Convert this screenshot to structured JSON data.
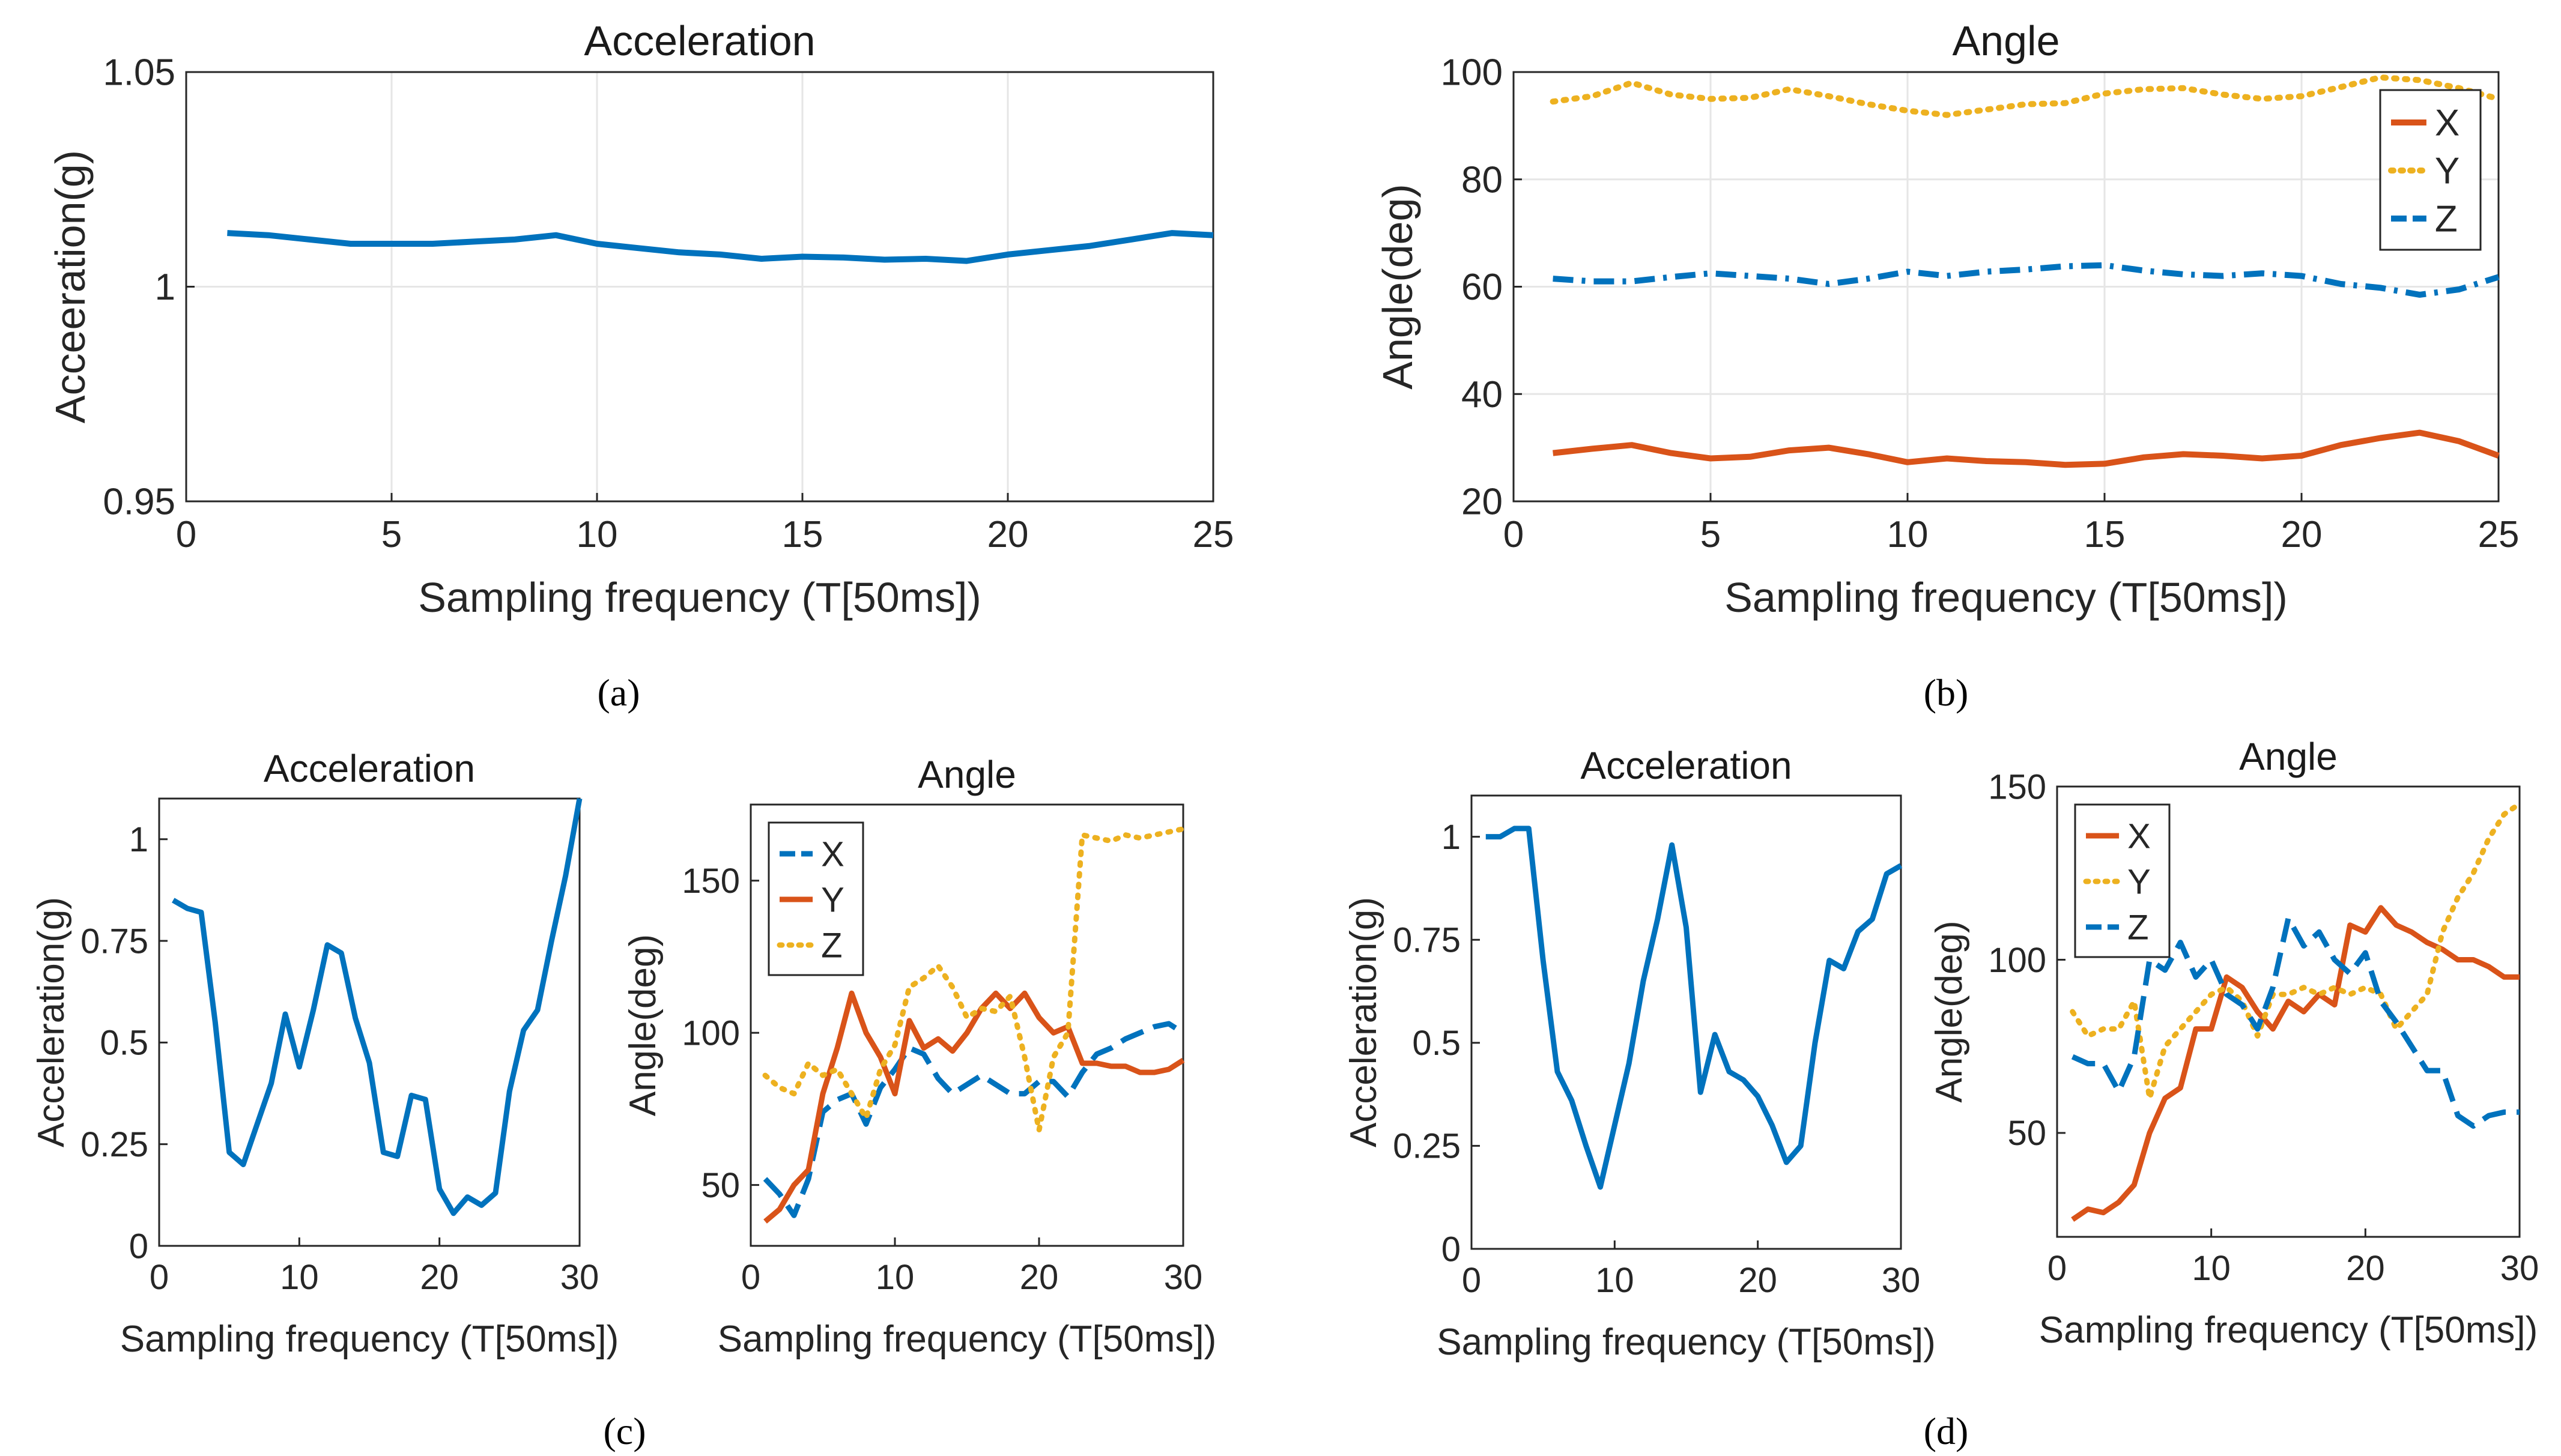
{
  "colors": {
    "blue": "#0072bd",
    "orange": "#d95319",
    "yellow": "#edb120",
    "grid": "#e6e6e6",
    "axis": "#262626"
  },
  "panel_labels": [
    "(a)",
    "(b)",
    "(c)",
    "(d)"
  ],
  "chart_data": [
    {
      "type": "line",
      "title": "Acceleration",
      "xlabel": "Sampling frequency (T[50ms])",
      "ylabel": "Acceeration(g)",
      "xlim": [
        0,
        25
      ],
      "ylim": [
        0.95,
        1.05
      ],
      "xticks": [
        0,
        5,
        10,
        15,
        20,
        25
      ],
      "yticks": [
        0.95,
        1,
        1.05
      ],
      "ytick_labels": [
        "0.95",
        "1",
        "1.05"
      ],
      "grid": true,
      "x": [
        1,
        2,
        3,
        4,
        5,
        6,
        7,
        8,
        9,
        10,
        11,
        12,
        13,
        14,
        15,
        16,
        17,
        18,
        19,
        20,
        21,
        22,
        23,
        24,
        25
      ],
      "series": [
        {
          "name": "Acceleration",
          "color": "blue",
          "style": "solid",
          "values": [
            1.0125,
            1.012,
            1.011,
            1.01,
            1.01,
            1.01,
            1.0105,
            1.011,
            1.012,
            1.01,
            1.009,
            1.008,
            1.0075,
            1.0065,
            1.007,
            1.0068,
            1.0063,
            1.0065,
            1.006,
            1.0075,
            1.0085,
            1.0095,
            1.011,
            1.0125,
            1.012
          ]
        }
      ]
    },
    {
      "type": "line",
      "title": "Angle",
      "xlabel": "Sampling frequency (T[50ms])",
      "ylabel": "Angle(deg)",
      "xlim": [
        0,
        25
      ],
      "ylim": [
        20,
        100
      ],
      "xticks": [
        0,
        5,
        10,
        15,
        20,
        25
      ],
      "yticks": [
        20,
        40,
        60,
        80,
        100
      ],
      "ytick_labels": [
        "20",
        "40",
        "60",
        "80",
        "100"
      ],
      "grid": true,
      "legend": "top-right",
      "x": [
        1,
        2,
        3,
        4,
        5,
        6,
        7,
        8,
        9,
        10,
        11,
        12,
        13,
        14,
        15,
        16,
        17,
        18,
        19,
        20,
        21,
        22,
        23,
        24,
        25
      ],
      "series": [
        {
          "name": "X",
          "color": "orange",
          "style": "solid",
          "values": [
            29,
            29.8,
            30.5,
            29,
            28,
            28.3,
            29.5,
            30,
            28.8,
            27.3,
            28,
            27.5,
            27.3,
            26.8,
            27,
            28.2,
            28.8,
            28.5,
            28,
            28.5,
            30.5,
            31.8,
            32.8,
            31.2,
            28.5
          ]
        },
        {
          "name": "Y",
          "color": "yellow",
          "style": "dotted",
          "values": [
            94.5,
            95.5,
            98,
            95.8,
            95,
            95.2,
            96.8,
            95.5,
            94,
            92.8,
            92,
            93,
            94,
            94.2,
            96,
            96.8,
            97,
            95.8,
            95,
            95.5,
            97.2,
            99,
            98.5,
            97,
            95
          ]
        },
        {
          "name": "Z",
          "color": "blue",
          "style": "dashdot",
          "values": [
            61.5,
            61,
            61,
            61.8,
            62.5,
            62,
            61.5,
            60.5,
            61.5,
            62.8,
            62,
            62.8,
            63.2,
            63.8,
            64,
            63,
            62.3,
            62,
            62.5,
            62,
            60.5,
            59.8,
            58.5,
            59.5,
            61.8
          ]
        }
      ]
    },
    {
      "type": "line",
      "title": "Acceleration",
      "xlabel": "Sampling frequency (T[50ms])",
      "ylabel": "Acceleration(g)",
      "xlim": [
        0,
        30
      ],
      "ylim": [
        0,
        1.1
      ],
      "xticks": [
        0,
        10,
        20,
        30
      ],
      "yticks": [
        0,
        0.25,
        0.5,
        0.75,
        1
      ],
      "ytick_labels": [
        "0",
        "0.25",
        "0.5",
        "0.75",
        "1"
      ],
      "grid": false,
      "x": [
        1,
        2,
        3,
        4,
        5,
        6,
        7,
        8,
        9,
        10,
        11,
        12,
        13,
        14,
        15,
        16,
        17,
        18,
        19,
        20,
        21,
        22,
        23,
        24,
        25,
        26,
        27,
        28,
        29,
        30
      ],
      "series": [
        {
          "name": "Acceleration",
          "color": "blue",
          "style": "solid",
          "values": [
            0.85,
            0.83,
            0.82,
            0.55,
            0.23,
            0.2,
            0.3,
            0.4,
            0.57,
            0.44,
            0.58,
            0.74,
            0.72,
            0.56,
            0.45,
            0.23,
            0.22,
            0.37,
            0.36,
            0.14,
            0.08,
            0.12,
            0.1,
            0.13,
            0.38,
            0.53,
            0.58,
            0.75,
            0.91,
            1.1
          ]
        }
      ]
    },
    {
      "type": "line",
      "title": "Angle",
      "xlabel": "Sampling frequency (T[50ms])",
      "ylabel": "Angle(deg)",
      "xlim": [
        0,
        30
      ],
      "ylim": [
        30,
        175
      ],
      "xticks": [
        0,
        10,
        20,
        30
      ],
      "yticks": [
        50,
        100,
        150
      ],
      "ytick_labels": [
        "50",
        "100",
        "150"
      ],
      "grid": false,
      "legend": "top-left",
      "x": [
        1,
        2,
        3,
        4,
        5,
        6,
        7,
        8,
        9,
        10,
        11,
        12,
        13,
        14,
        15,
        16,
        17,
        18,
        19,
        20,
        21,
        22,
        23,
        24,
        25,
        26,
        27,
        28,
        29,
        30
      ],
      "series": [
        {
          "name": "X",
          "color": "blue",
          "style": "dashed",
          "values": [
            52,
            47,
            40,
            52,
            74,
            78,
            80,
            70,
            82,
            88,
            95,
            93,
            85,
            80,
            83,
            86,
            83,
            80,
            80,
            84,
            84,
            79,
            87,
            93,
            95,
            98,
            100,
            102,
            103,
            100
          ]
        },
        {
          "name": "Y",
          "color": "orange",
          "style": "solid",
          "values": [
            38,
            42,
            50,
            55,
            80,
            95,
            113,
            100,
            92,
            80,
            104,
            95,
            98,
            94,
            100,
            108,
            113,
            108,
            113,
            105,
            100,
            102,
            90,
            90,
            89,
            89,
            87,
            87,
            88,
            91
          ]
        },
        {
          "name": "Z",
          "color": "yellow",
          "style": "dotted",
          "values": [
            86,
            82,
            80,
            90,
            86,
            88,
            80,
            72,
            88,
            96,
            115,
            118,
            122,
            115,
            105,
            108,
            107,
            112,
            92,
            68,
            92,
            100,
            165,
            164,
            163,
            165,
            164,
            165,
            166,
            167
          ]
        }
      ]
    },
    {
      "type": "line",
      "title": "Acceleration",
      "xlabel": "Sampling frequency (T[50ms])",
      "ylabel": "Acceleration(g)",
      "xlim": [
        0,
        30
      ],
      "ylim": [
        0,
        1.1
      ],
      "xticks": [
        0,
        10,
        20,
        30
      ],
      "yticks": [
        0,
        0.25,
        0.5,
        0.75,
        1
      ],
      "ytick_labels": [
        "0",
        "0.25",
        "0.5",
        "0.75",
        "1"
      ],
      "grid": false,
      "x": [
        1,
        2,
        3,
        4,
        5,
        6,
        7,
        8,
        9,
        10,
        11,
        12,
        13,
        14,
        15,
        16,
        17,
        18,
        19,
        20,
        21,
        22,
        23,
        24,
        25,
        26,
        27,
        28,
        29,
        30
      ],
      "series": [
        {
          "name": "Acceleration",
          "color": "blue",
          "style": "solid",
          "values": [
            1,
            1,
            1.02,
            1.02,
            0.7,
            0.43,
            0.36,
            0.25,
            0.15,
            0.3,
            0.45,
            0.65,
            0.8,
            0.98,
            0.78,
            0.38,
            0.52,
            0.43,
            0.41,
            0.37,
            0.3,
            0.21,
            0.25,
            0.5,
            0.7,
            0.68,
            0.77,
            0.8,
            0.91,
            0.93
          ]
        }
      ]
    },
    {
      "type": "line",
      "title": "Angle",
      "xlabel": "Sampling frequency (T[50ms])",
      "ylabel": "Angle(deg)",
      "xlim": [
        0,
        30
      ],
      "ylim": [
        20,
        150
      ],
      "xticks": [
        0,
        10,
        20,
        30
      ],
      "yticks": [
        50,
        100,
        150
      ],
      "ytick_labels": [
        "50",
        "100",
        "150"
      ],
      "grid": false,
      "legend": "top-left",
      "x": [
        1,
        2,
        3,
        4,
        5,
        6,
        7,
        8,
        9,
        10,
        11,
        12,
        13,
        14,
        15,
        16,
        17,
        18,
        19,
        20,
        21,
        22,
        23,
        24,
        25,
        26,
        27,
        28,
        29,
        30
      ],
      "series": [
        {
          "name": "X",
          "color": "orange",
          "style": "solid",
          "values": [
            25,
            28,
            27,
            30,
            35,
            50,
            60,
            63,
            80,
            80,
            95,
            92,
            85,
            80,
            88,
            85,
            90,
            87,
            110,
            108,
            115,
            110,
            108,
            105,
            103,
            100,
            100,
            98,
            95,
            95
          ]
        },
        {
          "name": "Y",
          "color": "yellow",
          "style": "dotted",
          "values": [
            85,
            78,
            80,
            80,
            88,
            60,
            75,
            80,
            85,
            90,
            92,
            88,
            78,
            90,
            90,
            92,
            90,
            92,
            90,
            92,
            90,
            80,
            85,
            90,
            108,
            118,
            125,
            135,
            142,
            145
          ]
        },
        {
          "name": "Z",
          "color": "blue",
          "style": "dashed",
          "values": [
            72,
            70,
            70,
            62,
            72,
            100,
            97,
            105,
            95,
            100,
            90,
            87,
            80,
            92,
            112,
            104,
            108,
            100,
            96,
            102,
            88,
            82,
            75,
            68,
            68,
            55,
            52,
            55,
            56,
            56
          ]
        }
      ]
    }
  ]
}
